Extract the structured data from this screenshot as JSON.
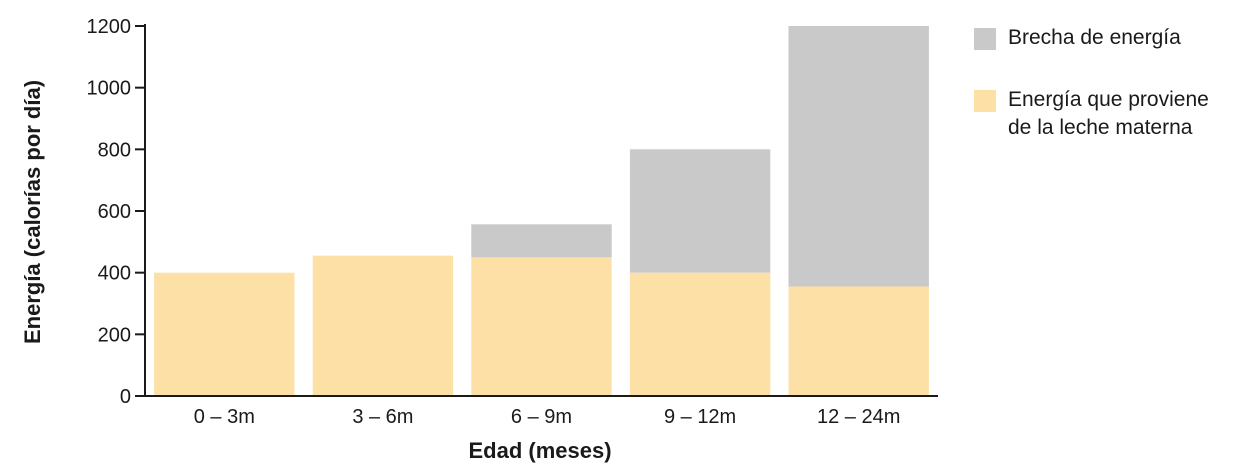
{
  "chart_data": {
    "type": "bar",
    "stacked": true,
    "categories": [
      "0 – 3m",
      "3 – 6m",
      "6 – 9m",
      "9 – 12m",
      "12 – 24m"
    ],
    "series": [
      {
        "name": "Energía que proviene de la leche materna",
        "color": "#fde0a5",
        "values": [
          400,
          455,
          450,
          400,
          355
        ]
      },
      {
        "name": "Brecha de energía",
        "color": "#c9c9c9",
        "values": [
          0,
          0,
          107,
          400,
          845
        ]
      }
    ],
    "xlabel": "Edad (meses)",
    "ylabel": "Energía (calorías por día)",
    "ylim": [
      0,
      1200
    ],
    "yticks": [
      0,
      200,
      400,
      600,
      800,
      1000,
      1200
    ],
    "grid": false,
    "legend_position": "right"
  }
}
